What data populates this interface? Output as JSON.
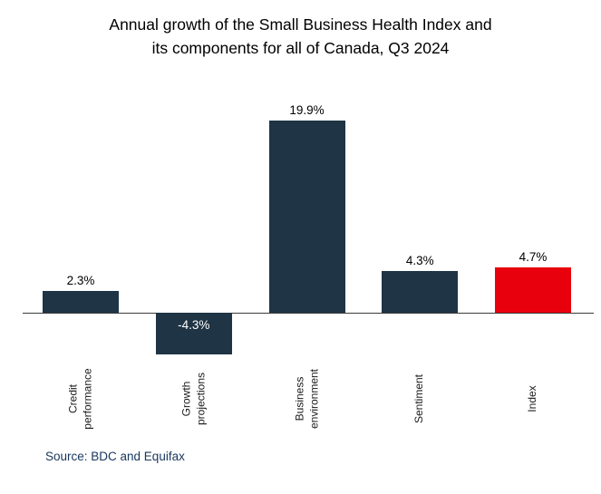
{
  "title": {
    "line1": "Annual growth of the Small Business Health Index and",
    "line2": "its components for all of Canada, Q3 2024"
  },
  "source_text": "Source: BDC and Equifax",
  "colors": {
    "bar_default": "#1f3444",
    "bar_highlight": "#e8000d",
    "axis_line": "#3a3a3a",
    "source_text": "#17365d",
    "value_label": "#000000",
    "negative_label_inside": "#ffffff"
  },
  "chart_data": {
    "type": "bar",
    "title": "Annual growth of the Small Business Health Index and its components for all of Canada, Q3 2024",
    "categories": [
      "Credit performance",
      "Growth projections",
      "Business environment",
      "Sentiment",
      "Index"
    ],
    "values": [
      2.3,
      -4.3,
      19.9,
      4.3,
      4.7
    ],
    "unit": "%",
    "ylim": [
      -6,
      22
    ],
    "grid": false,
    "legend": "none",
    "baseline": 0,
    "points": [
      {
        "category": "Credit\nperformance",
        "value": 2.3,
        "display": "2.3%",
        "color": "#1f3444",
        "label_position": "above"
      },
      {
        "category": "Growth\nprojections",
        "value": -4.3,
        "display": "-4.3%",
        "color": "#1f3444",
        "label_position": "inside"
      },
      {
        "category": "Business\nenvironment",
        "value": 19.9,
        "display": "19.9%",
        "color": "#1f3444",
        "label_position": "above"
      },
      {
        "category": "Sentiment",
        "value": 4.3,
        "display": "4.3%",
        "color": "#1f3444",
        "label_position": "above"
      },
      {
        "category": "Index",
        "value": 4.7,
        "display": "4.7%",
        "color": "#e8000d",
        "label_position": "above"
      }
    ],
    "source": "Source: BDC and Equifax"
  }
}
